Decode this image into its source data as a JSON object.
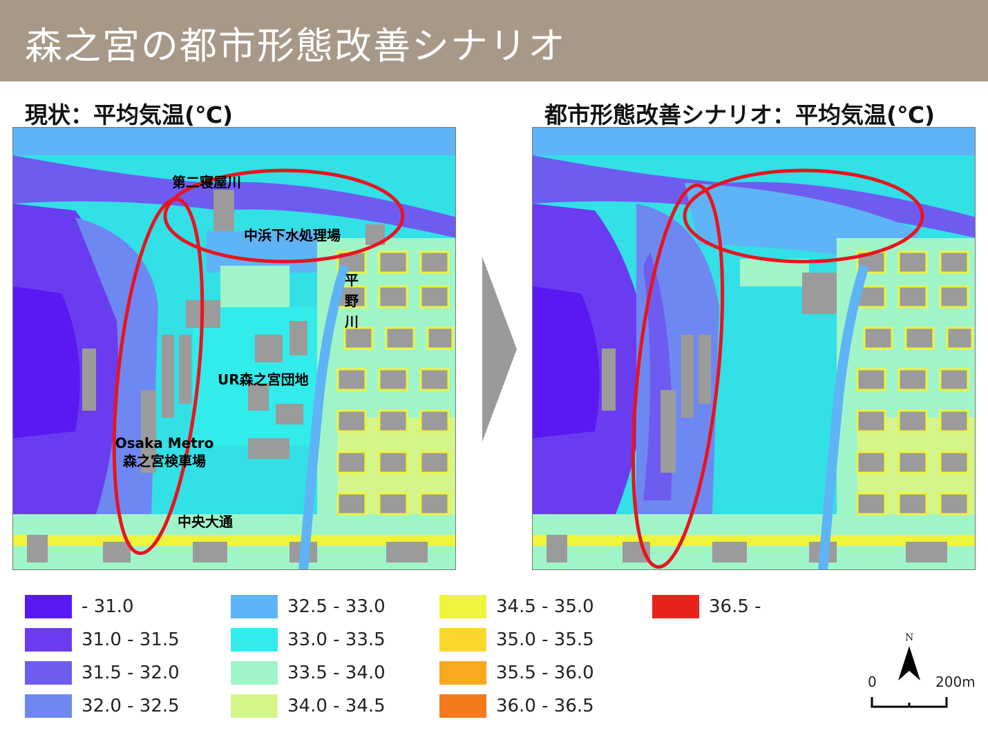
{
  "header": {
    "title": "森之宮の都市形態改善シナリオ"
  },
  "panels": {
    "left_title": "現状：平均気温(℃)",
    "right_title": "都市形態改善シナリオ：平均気温(℃)"
  },
  "map_labels": {
    "river2": "第二寝屋川",
    "sewage": "中浜下水処理場",
    "hirano": "平野川",
    "ur": "UR森之宮団地",
    "metro_line1": "Osaka Metro",
    "metro_line2": "森之宮検車場",
    "chuo": "中央大通"
  },
  "legend": [
    {
      "label": "- 31.0",
      "color": "#5a18f2"
    },
    {
      "label": "31.0 - 31.5",
      "color": "#6a3cf0"
    },
    {
      "label": "31.5 - 32.0",
      "color": "#6e5cf0"
    },
    {
      "label": "32.0 - 32.5",
      "color": "#6e88f2"
    },
    {
      "label": "32.5 - 33.0",
      "color": "#5eb4f6"
    },
    {
      "label": "33.0 - 33.5",
      "color": "#32ecec"
    },
    {
      "label": "33.5 - 34.0",
      "color": "#a0f5c8"
    },
    {
      "label": "34.0 - 34.5",
      "color": "#d4f58a"
    },
    {
      "label": "34.5 - 35.0",
      "color": "#eef43a"
    },
    {
      "label": "35.0 - 35.5",
      "color": "#fad72a"
    },
    {
      "label": "35.5 - 36.0",
      "color": "#f9a820"
    },
    {
      "label": "36.0 - 36.5",
      "color": "#f57a1e"
    },
    {
      "label": "36.5 -",
      "color": "#e8231e"
    }
  ],
  "scale_bar": {
    "north": "N",
    "start": "0",
    "end": "200m"
  },
  "highlight_color": "#e8141e"
}
